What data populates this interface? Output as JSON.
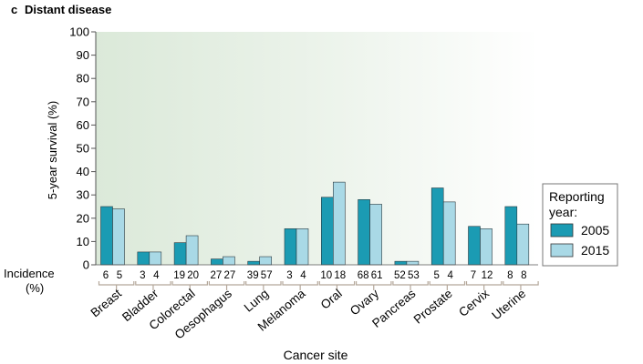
{
  "panel_letter": "c",
  "panel_title": "Distant disease",
  "incidence_label_line1": "Incidence",
  "incidence_label_line2": "(%)",
  "legend_title_line1": "Reporting",
  "legend_title_line2": "year:",
  "colors": {
    "s2005": "#1b9bb3",
    "s2015": "#a9d9e6",
    "bg_left": "#dbe9d9",
    "bg_right": "#ffffff",
    "bracket": "#b4a79a",
    "axis": "#555555"
  },
  "chart_data": {
    "type": "bar",
    "title": "Distant disease",
    "xlabel": "Cancer site",
    "ylabel": "5-year survival (%)",
    "ylim": [
      0,
      100
    ],
    "yticks": [
      0,
      10,
      20,
      30,
      40,
      50,
      60,
      70,
      80,
      90,
      100
    ],
    "grid": false,
    "legend_position": "right",
    "categories": [
      "Breast",
      "Bladder",
      "Colorectal",
      "Oesophagus",
      "Lung",
      "Melanoma",
      "Oral",
      "Ovary",
      "Pancreas",
      "Prostate",
      "Cervix",
      "Uterine"
    ],
    "series": [
      {
        "name": "2005",
        "values": [
          25,
          5.5,
          9.5,
          2.5,
          1.5,
          15.5,
          29,
          28,
          1.5,
          33,
          16.5,
          25
        ]
      },
      {
        "name": "2015",
        "values": [
          24,
          5.5,
          12.5,
          3.5,
          3.5,
          15.5,
          35.5,
          26,
          1.5,
          27,
          15.5,
          17.5
        ]
      }
    ],
    "incidence": [
      [
        "6",
        "5"
      ],
      [
        "3",
        "4"
      ],
      [
        "19",
        "20"
      ],
      [
        "27",
        "27"
      ],
      [
        "39",
        "57"
      ],
      [
        "3",
        "4"
      ],
      [
        "10",
        "18"
      ],
      [
        "68",
        "61"
      ],
      [
        "52",
        "53"
      ],
      [
        "5",
        "4"
      ],
      [
        "7",
        "12"
      ],
      [
        "8",
        "8"
      ]
    ]
  }
}
